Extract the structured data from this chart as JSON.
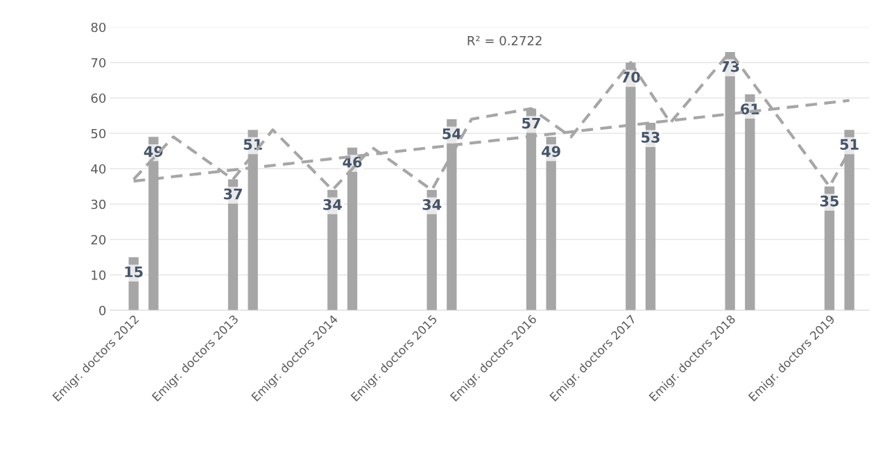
{
  "chart_data": {
    "type": "bar",
    "categories": [
      null,
      "Emigr. doctors 2012",
      null,
      null,
      null,
      null,
      "Emigr. doctors 2013",
      null,
      null,
      null,
      null,
      "Emigr. doctors 2014",
      null,
      null,
      null,
      null,
      "Emigr. doctors 2015",
      null,
      null,
      null,
      null,
      "Emigr. doctors 2016",
      null,
      null,
      null,
      null,
      "Emigr. doctors 2017",
      null,
      null,
      null,
      null,
      "Emigr. doctors 2018",
      null,
      null,
      null,
      null,
      "Emigr. doctors 2019",
      null,
      null
    ],
    "series": [
      {
        "color": "#a6a6a6",
        "values": [
          null,
          15,
          49,
          null,
          null,
          null,
          37,
          51,
          null,
          null,
          null,
          34,
          46,
          null,
          null,
          null,
          34,
          54,
          null,
          null,
          null,
          57,
          49,
          null,
          null,
          null,
          70,
          53,
          null,
          null,
          null,
          73,
          61,
          null,
          null,
          null,
          35,
          51,
          null
        ],
        "value_labels": [
          null,
          "15",
          "49",
          null,
          null,
          null,
          "37",
          "51",
          null,
          null,
          null,
          "34",
          "46",
          null,
          null,
          null,
          "34",
          "54",
          null,
          null,
          null,
          "57",
          "49",
          null,
          null,
          null,
          "70",
          "53",
          null,
          null,
          null,
          "73",
          "61",
          null,
          null,
          null,
          "35",
          "51",
          null
        ]
      },
      {
        "type": "line",
        "color": "#a6a6a6",
        "line_style": "dashed",
        "values": [
          null,
          37,
          null,
          49,
          null,
          null,
          37,
          null,
          51,
          null,
          null,
          34,
          null,
          46,
          null,
          null,
          34,
          null,
          54,
          null,
          null,
          57,
          null,
          49,
          null,
          null,
          70,
          null,
          53,
          null,
          null,
          73,
          null,
          null,
          null,
          null,
          35,
          45,
          null
        ]
      },
      {
        "type": "line",
        "color": "#a6a6a6",
        "line_style": "dashed",
        "values": [
          null,
          36.5,
          null,
          null,
          null,
          null,
          null,
          null,
          null,
          null,
          null,
          null,
          null,
          null,
          null,
          null,
          null,
          null,
          null,
          null,
          null,
          null,
          null,
          null,
          null,
          null,
          null,
          null,
          null,
          null,
          null,
          null,
          null,
          null,
          null,
          null,
          null,
          59.3,
          null
        ]
      }
    ],
    "ylim": [
      0,
      80
    ],
    "yticks": [
      0,
      10,
      20,
      30,
      40,
      50,
      60,
      70,
      80
    ],
    "grid": "y",
    "annotations": [
      "R² = 0.2722"
    ]
  }
}
